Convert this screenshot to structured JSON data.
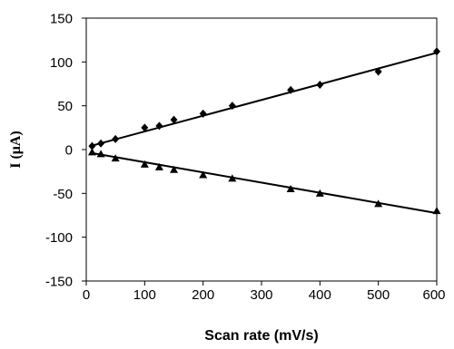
{
  "chart_data": {
    "type": "scatter",
    "xlabel": "Scan rate (mV/s)",
    "ylabel": "I (μA)",
    "xlim": [
      0,
      600
    ],
    "ylim": [
      -150,
      150
    ],
    "x_ticks": [
      "0",
      "100",
      "200",
      "300",
      "400",
      "500",
      "600"
    ],
    "y_ticks": [
      "150",
      "100",
      "50",
      "0",
      "-50",
      "-100",
      "-150"
    ],
    "grid": false,
    "legend": "none",
    "series": [
      {
        "marker": "diamond",
        "x": [
          10,
          25,
          50,
          100,
          125,
          150,
          200,
          250,
          350,
          400,
          500,
          600
        ],
        "y": [
          4,
          7,
          12,
          25,
          27,
          34,
          41,
          50,
          68,
          74,
          89,
          112
        ],
        "trendline": {
          "x": [
            10,
            600
          ],
          "y": [
            4.5,
            110.5
          ]
        }
      },
      {
        "marker": "triangle",
        "x": [
          10,
          25,
          50,
          100,
          125,
          150,
          200,
          250,
          350,
          400,
          500,
          600
        ],
        "y": [
          -3,
          -5,
          -10,
          -17,
          -20,
          -23,
          -29,
          -33,
          -45,
          -50,
          -62,
          -70
        ],
        "trendline": {
          "x": [
            10,
            600
          ],
          "y": [
            -4,
            -72.5
          ]
        }
      }
    ],
    "colors": {
      "marks": "#000000",
      "frame": "#000000"
    }
  }
}
